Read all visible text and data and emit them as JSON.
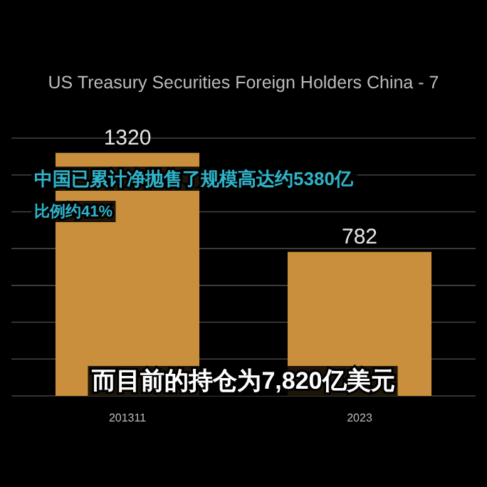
{
  "chart_data": {
    "type": "bar",
    "title": "US Treasury Securities Foreign Holders China - 7",
    "categories": [
      "201311",
      "2023"
    ],
    "values": [
      1320,
      782
    ],
    "color": "#c98f3c",
    "ylim": [
      0,
      1400
    ],
    "yticks": [
      {
        "value": 0,
        "label": null
      },
      {
        "value": 200,
        "label": null
      },
      {
        "value": 400,
        "label": null
      },
      {
        "value": 600,
        "label": null
      },
      {
        "value": 800,
        "label": null
      },
      {
        "value": 1000,
        "label": null
      },
      {
        "value": 1200,
        "label": null
      },
      {
        "value": 1400,
        "label": null
      }
    ],
    "tick_labels": "x",
    "grid": "y",
    "data_labels": true,
    "annotations": [
      "中国已累计净抛售了规模高达约5380亿",
      "比例约41%",
      "而目前的持仓为7,820亿美元"
    ]
  }
}
